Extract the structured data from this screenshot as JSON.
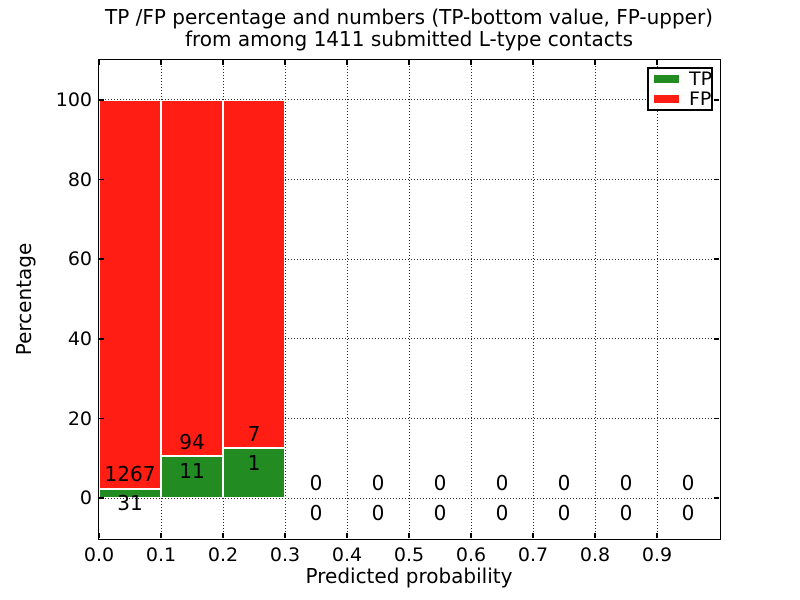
{
  "figure": {
    "title_line1": "TP /FP percentage and numbers (TP-bottom value, FP-upper)",
    "title_line2": "from among 1411 submitted L-type contacts"
  },
  "chart_data": {
    "type": "bar",
    "stacked": true,
    "title": "TP /FP percentage and numbers (TP-bottom value, FP-upper) from among 1411 submitted L-type contacts",
    "xlabel": "Predicted probability",
    "ylabel": "Percentage",
    "xlim": [
      0.0,
      1.0
    ],
    "ylim": [
      -10,
      110
    ],
    "x_tick_labels": [
      "0.0",
      "0.1",
      "0.2",
      "0.3",
      "0.4",
      "0.5",
      "0.6",
      "0.7",
      "0.8",
      "0.9"
    ],
    "y_ticks": [
      0,
      20,
      40,
      60,
      80,
      100
    ],
    "grid": {
      "visible": true,
      "style": "dotted"
    },
    "bar_width": 0.1,
    "total_submitted_contacts": 1411,
    "legend": {
      "position": "upper-right",
      "entries": [
        {
          "label": "TP",
          "color": "#228b22"
        },
        {
          "label": "FP",
          "color": "#ff1d14"
        }
      ]
    },
    "bins": [
      {
        "x_start": 0.0,
        "x_end": 0.1,
        "tp": 31,
        "fp": 1267,
        "tp_pct": 2.39,
        "fp_pct": 97.61
      },
      {
        "x_start": 0.1,
        "x_end": 0.2,
        "tp": 11,
        "fp": 94,
        "tp_pct": 10.48,
        "fp_pct": 89.52
      },
      {
        "x_start": 0.2,
        "x_end": 0.3,
        "tp": 1,
        "fp": 7,
        "tp_pct": 12.5,
        "fp_pct": 87.5
      },
      {
        "x_start": 0.3,
        "x_end": 0.4,
        "tp": 0,
        "fp": 0,
        "tp_pct": 0,
        "fp_pct": 0
      },
      {
        "x_start": 0.4,
        "x_end": 0.5,
        "tp": 0,
        "fp": 0,
        "tp_pct": 0,
        "fp_pct": 0
      },
      {
        "x_start": 0.5,
        "x_end": 0.6,
        "tp": 0,
        "fp": 0,
        "tp_pct": 0,
        "fp_pct": 0
      },
      {
        "x_start": 0.6,
        "x_end": 0.7,
        "tp": 0,
        "fp": 0,
        "tp_pct": 0,
        "fp_pct": 0
      },
      {
        "x_start": 0.7,
        "x_end": 0.8,
        "tp": 0,
        "fp": 0,
        "tp_pct": 0,
        "fp_pct": 0
      },
      {
        "x_start": 0.8,
        "x_end": 0.9,
        "tp": 0,
        "fp": 0,
        "tp_pct": 0,
        "fp_pct": 0
      },
      {
        "x_start": 0.9,
        "x_end": 1.0,
        "tp": 0,
        "fp": 0,
        "tp_pct": 0,
        "fp_pct": 0
      }
    ]
  },
  "colors": {
    "tp": "#228b22",
    "fp": "#ff1d14",
    "background": "#ffffff",
    "text": "#000000",
    "grid": "#2a2a2a"
  }
}
